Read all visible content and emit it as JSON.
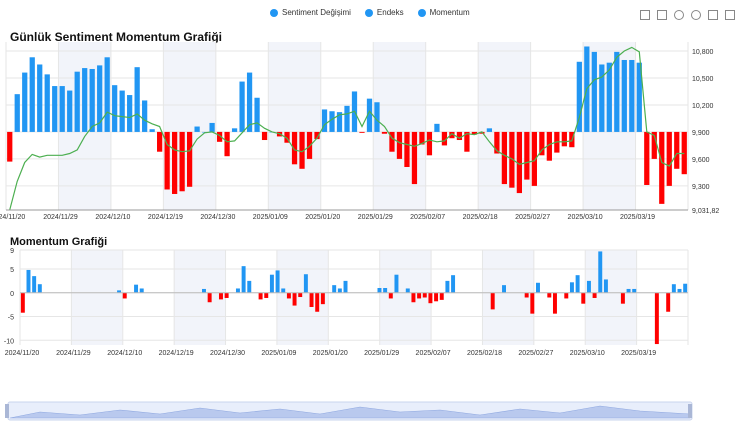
{
  "legend": [
    {
      "label": "Sentiment Değişimi",
      "color": "#2196f3"
    },
    {
      "label": "Endeks",
      "color": "#2196f3"
    },
    {
      "label": "Momentum",
      "color": "#2196f3"
    }
  ],
  "toolbox": [
    "zoom-icon",
    "lasso-icon",
    "polygon-select-icon",
    "clear-selection-icon",
    "restore-icon",
    "save-image-icon"
  ],
  "colors": {
    "positive": "#2196f3",
    "negative": "#ff0000",
    "line": "#4caf50",
    "grid": "#e6e6e6",
    "band": "#f2f4fa"
  },
  "chart_data": [
    {
      "type": "bar",
      "title": "Günlük Sentiment Momentum Grafiği",
      "x_tick_labels": [
        "2024/11/20",
        "2024/11/29",
        "2024/12/10",
        "2024/12/19",
        "2024/12/30",
        "2025/01/09",
        "2025/01/20",
        "2025/01/29",
        "2025/02/07",
        "2025/02/18",
        "2025/02/27",
        "2025/03/10",
        "2025/03/19"
      ],
      "y_tick_labels": [
        "9,031,82",
        "9,300",
        "9,600",
        "9,900",
        "10,200",
        "10,500",
        "10,800"
      ],
      "ylim": [
        9031.82,
        10900
      ],
      "baseline": 9900,
      "series": [
        {
          "name": "Sentiment Değişimi",
          "type": "bar",
          "values": [
            9570,
            10320,
            10560,
            10730,
            10650,
            10540,
            10410,
            10410,
            10360,
            10570,
            10610,
            10600,
            10640,
            10730,
            10420,
            10360,
            10310,
            10620,
            10250,
            9930,
            9680,
            9260,
            9210,
            9240,
            9290,
            9960,
            9900,
            10000,
            9790,
            9630,
            9940,
            10460,
            10560,
            10280,
            9810,
            9900,
            9850,
            9780,
            9540,
            9490,
            9600,
            9820,
            10150,
            10130,
            10120,
            10190,
            10350,
            9890,
            10270,
            10230,
            9880,
            9680,
            9600,
            9510,
            9320,
            9760,
            9640,
            9990,
            9750,
            9830,
            9810,
            9680,
            9870,
            9880,
            9940,
            9660,
            9320,
            9280,
            9220,
            9370,
            9300,
            9640,
            9580,
            9670,
            9740,
            9730,
            10680,
            10850,
            10790,
            10650,
            10670,
            10790,
            10700,
            10700,
            10670,
            9310,
            9600,
            9100,
            9300,
            9490,
            9430
          ]
        },
        {
          "name": "Endeks",
          "type": "line",
          "values": [
            9031.82,
            9350,
            9560,
            9650,
            9620,
            9640,
            9640,
            9640,
            9660,
            9700,
            9850,
            9960,
            10000,
            10120,
            10080,
            10070,
            10060,
            10100,
            10030,
            9990,
            9960,
            9760,
            9700,
            9680,
            9690,
            9820,
            9890,
            9900,
            9860,
            9790,
            9800,
            9890,
            9980,
            10000,
            9940,
            9900,
            9880,
            9830,
            9700,
            9680,
            9740,
            9830,
            9980,
            10040,
            10090,
            10100,
            10130,
            9960,
            10130,
            10030,
            9960,
            9830,
            9780,
            9760,
            9740,
            9770,
            9810,
            9790,
            9800,
            9880,
            9830,
            9880,
            9870,
            9900,
            9790,
            9690,
            9640,
            9600,
            9540,
            9560,
            9580,
            9700,
            9760,
            9790,
            9790,
            9800,
            10060,
            10380,
            10480,
            10510,
            10590,
            10730,
            10800,
            10840,
            10790,
            9900,
            9860,
            9560,
            9520,
            9660,
            9660
          ]
        }
      ]
    },
    {
      "type": "bar",
      "title": "Momentum Grafiği",
      "x_tick_labels": [
        "2024/11/20",
        "2024/11/29",
        "2024/12/10",
        "2024/12/19",
        "2024/12/30",
        "2025/01/09",
        "2025/01/20",
        "2025/01/29",
        "2025/02/07",
        "2025/02/18",
        "2025/02/27",
        "2025/03/10",
        "2025/03/19"
      ],
      "y_tick_labels": [
        "9",
        "5",
        "0",
        "-5",
        "-10"
      ],
      "ylim": [
        -11,
        9
      ],
      "series": [
        {
          "name": "Momentum",
          "values": [
            -4.2,
            4.8,
            3.5,
            1.8,
            0,
            0,
            0,
            0,
            0,
            0,
            0,
            0,
            0,
            0,
            0,
            0,
            0,
            0.5,
            -1.2,
            0,
            1.7,
            0.9,
            0,
            0,
            0,
            0,
            0,
            0,
            0,
            0,
            0,
            0,
            0.8,
            -2,
            0,
            -1.4,
            -1.1,
            0,
            0.9,
            5.6,
            2.5,
            0,
            -1.4,
            -1.1,
            3.8,
            4.7,
            0.9,
            -1.2,
            -2.7,
            -0.9,
            3.9,
            -3,
            -4,
            -2.4,
            0,
            1.6,
            0.9,
            2.5,
            0,
            0,
            0,
            0,
            0,
            1,
            1,
            -1.2,
            3.8,
            0,
            0.9,
            -2,
            -1.2,
            -1,
            -2.2,
            -1.8,
            -1.5,
            2.5,
            3.7,
            0,
            0,
            0,
            0,
            0,
            0,
            -3.5,
            0,
            1.6,
            0,
            0,
            0,
            -1,
            -4.4,
            2.1,
            0,
            -1,
            -4.4,
            0,
            -1.2,
            2.2,
            3.7,
            -2.3,
            2.5,
            -1.1,
            8.7,
            2.8,
            0,
            0,
            -2.3,
            0.8,
            0.8,
            0,
            0,
            0,
            -10.8,
            0,
            -4,
            1.8,
            0.8,
            1.9
          ]
        }
      ]
    }
  ]
}
